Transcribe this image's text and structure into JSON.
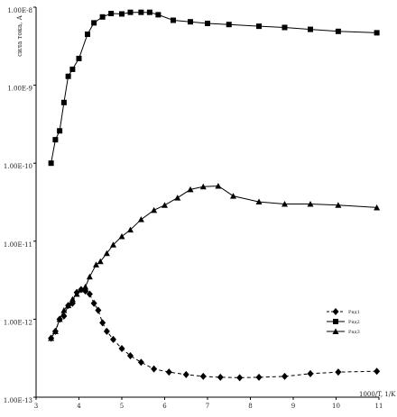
{
  "chart_data": {
    "type": "line",
    "title": "",
    "xlabel": "1000/T, 1/K",
    "ylabel": "сила тока, А",
    "xlim": [
      3,
      11
    ],
    "ylim": [
      1e-13,
      1e-08
    ],
    "yscale": "log",
    "grid": false,
    "legend_position": "right",
    "x_ticks": [
      "3",
      "4",
      "5",
      "6",
      "7",
      "8",
      "9",
      "10",
      "11"
    ],
    "y_ticks": [
      "1.00E-8",
      "1.00E-9",
      "1.00E-10",
      "1.00E-11",
      "1.00E-12",
      "1.00E-13"
    ],
    "series": [
      {
        "name": "Ряд1",
        "marker": "diamond",
        "line": "dashed",
        "color": "#000000",
        "x": [
          3.35,
          3.45,
          3.55,
          3.65,
          3.75,
          3.85,
          3.95,
          4.05,
          4.15,
          4.25,
          4.35,
          4.45,
          4.55,
          4.65,
          4.8,
          5.0,
          5.2,
          5.45,
          5.75,
          6.1,
          6.5,
          6.9,
          7.3,
          7.75,
          8.2,
          8.8,
          9.4,
          10.05,
          10.95
        ],
        "y": [
          5.7e-13,
          7e-13,
          1e-12,
          1.1e-12,
          1.5e-12,
          1.6e-12,
          2.2e-12,
          2.4e-12,
          2.3e-12,
          2.1e-12,
          1.6e-12,
          1.3e-12,
          9e-13,
          7e-13,
          5.5e-13,
          4.2e-13,
          3.4e-13,
          2.8e-13,
          2.3e-13,
          2.1e-13,
          1.95e-13,
          1.85e-13,
          1.8e-13,
          1.78e-13,
          1.8e-13,
          1.85e-13,
          2e-13,
          2.1e-13,
          2.15e-13
        ]
      },
      {
        "name": "Ряд2",
        "marker": "square",
        "line": "solid",
        "color": "#000000",
        "x": [
          3.35,
          3.45,
          3.55,
          3.65,
          3.75,
          3.85,
          4.0,
          4.2,
          4.35,
          4.55,
          4.75,
          5.0,
          5.2,
          5.45,
          5.65,
          5.85,
          6.2,
          6.6,
          7.0,
          7.5,
          8.2,
          8.8,
          9.4,
          10.05,
          10.95
        ],
        "y": [
          1e-10,
          2e-10,
          2.6e-10,
          6e-10,
          1.3e-09,
          1.6e-09,
          2.2e-09,
          4.5e-09,
          6.3e-09,
          7.5e-09,
          8.3e-09,
          8.2e-09,
          8.6e-09,
          8.6e-09,
          8.6e-09,
          8e-09,
          6.8e-09,
          6.5e-09,
          6.2e-09,
          6e-09,
          5.7e-09,
          5.5e-09,
          5.2e-09,
          4.9e-09,
          4.7e-09
        ]
      },
      {
        "name": "Ряд3",
        "marker": "triangle",
        "line": "solid",
        "color": "#000000",
        "x": [
          3.35,
          3.45,
          3.55,
          3.65,
          3.75,
          3.85,
          3.95,
          4.05,
          4.15,
          4.25,
          4.4,
          4.5,
          4.65,
          4.8,
          5.0,
          5.2,
          5.45,
          5.75,
          6.0,
          6.3,
          6.6,
          6.9,
          7.25,
          7.6,
          8.2,
          8.8,
          9.4,
          10.05,
          10.95
        ],
        "y": [
          5.7e-13,
          7e-13,
          1e-12,
          1.3e-12,
          1.5e-12,
          1.8e-12,
          2.1e-12,
          2.4e-12,
          2.6e-12,
          3.5e-12,
          5e-12,
          5.5e-12,
          7e-12,
          9e-12,
          1.15e-11,
          1.4e-11,
          1.9e-11,
          2.5e-11,
          2.9e-11,
          3.6e-11,
          4.6e-11,
          5e-11,
          5.1e-11,
          3.8e-11,
          3.2e-11,
          3e-11,
          3e-11,
          2.9e-11,
          2.7e-11
        ]
      }
    ]
  }
}
